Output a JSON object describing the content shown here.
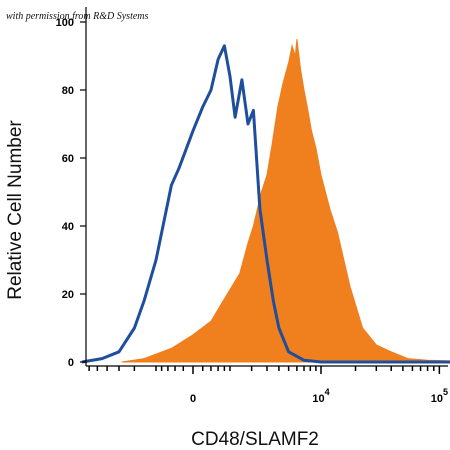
{
  "permission_note": "with permission from R&D Systems",
  "chart_data": {
    "type": "area",
    "ylabel": "Relative Cell Number",
    "xlabel": "CD48/SLAMF2",
    "ylim": [
      0,
      100
    ],
    "grid": false,
    "y_ticks": [
      0,
      20,
      40,
      60,
      80,
      100
    ],
    "x_ticks": [
      {
        "label": "0",
        "exponent": "",
        "value": 0
      },
      {
        "label": "10",
        "exponent": "4",
        "value": 10000
      },
      {
        "label": "10",
        "exponent": "5",
        "value": 100000
      }
    ],
    "series": [
      {
        "style": "filled",
        "color": "#F07F1E",
        "x": [
          -2800,
          -1500,
          -500,
          0,
          400,
          900,
          1400,
          1800,
          2100,
          2600,
          3000,
          3400,
          3900,
          4400,
          5000,
          5400,
          5800,
          6000,
          6500,
          7000,
          7600,
          8200,
          9000,
          10000,
          12000,
          14000,
          18000,
          23000,
          30000,
          40000,
          55000,
          80000,
          130000
        ],
        "values": [
          0,
          1,
          4,
          8,
          12,
          20,
          26,
          35,
          40,
          50,
          55,
          64,
          75,
          82,
          88,
          93,
          90,
          95,
          86,
          80,
          74,
          68,
          63,
          55,
          45,
          38,
          22,
          10,
          5,
          3,
          1,
          0.5,
          0.3
        ]
      },
      {
        "style": "outline",
        "color": "#1F4E9C",
        "x": [
          -7000,
          -4500,
          -3000,
          -2000,
          -1500,
          -1000,
          -500,
          -300,
          0,
          200,
          400,
          600,
          800,
          1000,
          1200,
          1500,
          1800,
          2100,
          2500,
          3000,
          3500,
          4000,
          5000,
          7000,
          10000,
          20000,
          130000
        ],
        "values": [
          0,
          1,
          3,
          10,
          18,
          30,
          52,
          57,
          68,
          75,
          80,
          89,
          93,
          84,
          72,
          83,
          70,
          74,
          45,
          30,
          18,
          10,
          3,
          0.5,
          0,
          0,
          0
        ]
      }
    ]
  }
}
